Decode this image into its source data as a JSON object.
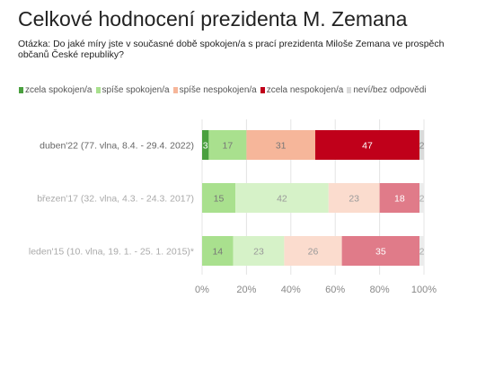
{
  "title": "Celkové hodnocení prezidenta M. Zemana",
  "question": "Otázka: Do jaké míry jste v současné době spokojen/a s prací prezidenta Miloše Zemana ve prospěch občanů České republiky?",
  "chart_data": {
    "type": "bar",
    "orientation": "horizontal",
    "stacked": true,
    "categories": [
      "duben'22 (77. vlna, 8.4. - 29.4. 2022)",
      "březen'17 (32. vlna, 4.3. - 24.3. 2017)",
      "leden'15 (10. vlna, 19. 1. - 25. 1. 2015)*"
    ],
    "series": [
      {
        "name": "zcela spokojen/a",
        "values": [
          3,
          15,
          14
        ],
        "colors": [
          "#4aa03f",
          "#a9e08e",
          "#a9e08e"
        ],
        "label_colors": [
          "#ffffff",
          "#777777",
          "#777777"
        ]
      },
      {
        "name": "spíše spokojen/a",
        "values": [
          17,
          42,
          23
        ],
        "colors": [
          "#a9e08e",
          "#d6f2c8",
          "#d6f2c8"
        ],
        "label_colors": [
          "#777777",
          "#999999",
          "#999999"
        ]
      },
      {
        "name": "spíše nespokojen/a",
        "values": [
          31,
          23,
          26
        ],
        "colors": [
          "#f6b69a",
          "#fbdcce",
          "#fbdcce"
        ],
        "label_colors": [
          "#777777",
          "#999999",
          "#999999"
        ]
      },
      {
        "name": "zcela nespokojen/a",
        "values": [
          47,
          18,
          35
        ],
        "colors": [
          "#c0001a",
          "#e07b89",
          "#e07b89"
        ],
        "label_colors": [
          "#ffffff",
          "#ffffff",
          "#ffffff"
        ]
      },
      {
        "name": "neví/bez odpovědi",
        "values": [
          2,
          2,
          2
        ],
        "colors": [
          "#dadada",
          "#ececec",
          "#ececec"
        ],
        "label_colors": [
          "#888888",
          "#aaaaaa",
          "#aaaaaa"
        ]
      }
    ],
    "legend_colors": [
      "#4aa03f",
      "#a9e08e",
      "#f6b69a",
      "#c0001a",
      "#dadada"
    ],
    "category_label_colors": [
      "#666666",
      "#aaaaaa",
      "#aaaaaa"
    ],
    "xlim": [
      0,
      100
    ],
    "xticks": [
      "0%",
      "20%",
      "40%",
      "60%",
      "80%",
      "100%"
    ],
    "legend_position": "top-left",
    "grid": true
  }
}
